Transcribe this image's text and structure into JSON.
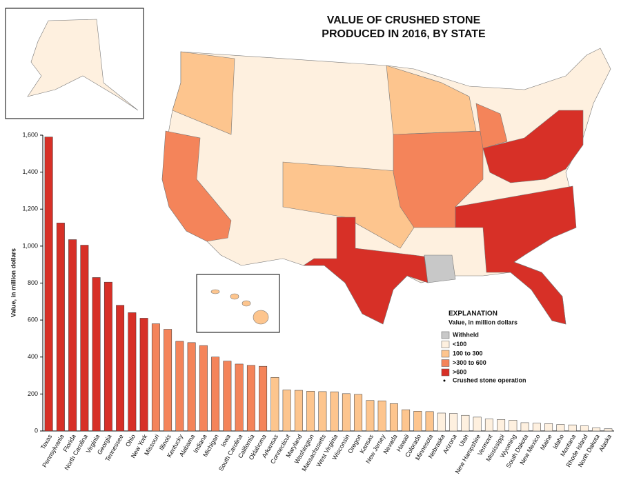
{
  "chart_data": {
    "type": "bar",
    "title": [
      "VALUE OF CRUSHED STONE",
      "PRODUCED IN 2016, BY STATE"
    ],
    "y_label": "Value, in million dollars",
    "categories": [
      "Texas",
      "Pennsylvania",
      "Florida",
      "North Carolina",
      "Virginia",
      "Georgia",
      "Tennessee",
      "Ohio",
      "New York",
      "Missouri",
      "Illinois",
      "Kentucky",
      "Alabama",
      "Indiana",
      "Michigan",
      "Iowa",
      "South Carolina",
      "California",
      "Oklahoma",
      "Arkansas",
      "Connecticut",
      "Maryland",
      "Washington",
      "Massachusetts",
      "West Virginia",
      "Wisconsin",
      "Oregon",
      "Kansas",
      "New Jersey",
      "Nevada",
      "Hawaii",
      "Colorado",
      "Minnesota",
      "Nebraska",
      "Arizona",
      "Utah",
      "New Hampshire",
      "Vermont",
      "Mississippi",
      "Wyoming",
      "South Dakota",
      "New Mexico",
      "Maine",
      "Idaho",
      "Montana",
      "Rhode Island",
      "North Dakota",
      "Alaska"
    ],
    "values": [
      1590,
      1125,
      1035,
      1005,
      830,
      805,
      680,
      640,
      610,
      580,
      550,
      485,
      478,
      462,
      400,
      378,
      362,
      355,
      350,
      290,
      222,
      220,
      215,
      213,
      212,
      202,
      198,
      165,
      163,
      148,
      115,
      107,
      105,
      97,
      95,
      85,
      75,
      65,
      62,
      58,
      45,
      42,
      40,
      35,
      33,
      28,
      17,
      12
    ],
    "colors": [
      "#d73027",
      "#d73027",
      "#d73027",
      "#d73027",
      "#d73027",
      "#d73027",
      "#d73027",
      "#d73027",
      "#d73027",
      "#f4845a",
      "#f4845a",
      "#f4845a",
      "#f4845a",
      "#f4845a",
      "#f4845a",
      "#f4845a",
      "#f4845a",
      "#f4845a",
      "#f4845a",
      "#fdc58e",
      "#fdc58e",
      "#fdc58e",
      "#fdc58e",
      "#fdc58e",
      "#fdc58e",
      "#fdc58e",
      "#fdc58e",
      "#fdc58e",
      "#fdc58e",
      "#fdc58e",
      "#fdc58e",
      "#fdc58e",
      "#fdc58e",
      "#fef0df",
      "#fef0df",
      "#fef0df",
      "#fef0df",
      "#fef0df",
      "#fef0df",
      "#fef0df",
      "#fef0df",
      "#fef0df",
      "#fef0df",
      "#fef0df",
      "#fef0df",
      "#fef0df",
      "#fef0df",
      "#fef0df"
    ],
    "ylim": [
      0,
      1600
    ],
    "yticks": [
      0,
      200,
      400,
      600,
      800,
      {
        "value": 1000,
        "label": "1,000"
      },
      {
        "value": 1200,
        "label": "1,200"
      },
      {
        "value": 1400,
        "label": "1,400"
      },
      {
        "value": 1600,
        "label": "1,600"
      }
    ],
    "legend": {
      "title": "EXPLANATION",
      "subtitle": "Value, in million dollars",
      "items": [
        {
          "label": "Withheld",
          "color": "#c8c8c8"
        },
        {
          "label": "<100",
          "color": "#fef0df"
        },
        {
          "label": "100 to 300",
          "color": "#fdc58e"
        },
        {
          "label": ">300 to 600",
          "color": "#f4845a"
        },
        {
          "label": ">600",
          "color": "#d73027"
        }
      ],
      "points": "Crushed stone operation"
    }
  }
}
